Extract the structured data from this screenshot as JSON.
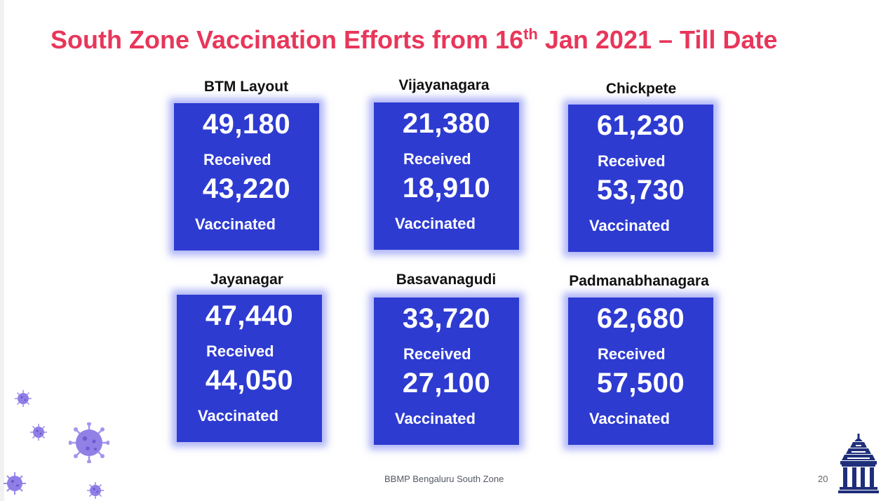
{
  "slide": {
    "title_prefix": "South Zone Vaccination Efforts from 16",
    "title_sup": "th",
    "title_suffix": " Jan 2021 – Till Date",
    "footer": "BBMP Bengaluru South Zone",
    "page_number": "20",
    "colors": {
      "title": "#e8365a",
      "card": "#2e3bd1",
      "card_glow": "#6e78f0",
      "virus": "#8f7ee6"
    }
  },
  "cards": [
    {
      "name": "BTM Layout",
      "received": "49,180",
      "received_label": "Received",
      "vaccinated": "43,220",
      "vaccinated_label": "Vaccinated"
    },
    {
      "name": "Vijayanagara",
      "received": "21,380",
      "received_label": "Received",
      "vaccinated": "18,910",
      "vaccinated_label": "Vaccinated"
    },
    {
      "name": "Chickpete",
      "received": "61,230",
      "received_label": "Received",
      "vaccinated": "53,730",
      "vaccinated_label": "Vaccinated"
    },
    {
      "name": "Jayanagar",
      "received": "47,440",
      "received_label": "Received",
      "vaccinated": "44,050",
      "vaccinated_label": "Vaccinated"
    },
    {
      "name": "Basavanagudi",
      "received": "33,720",
      "received_label": "Received",
      "vaccinated": "27,100",
      "vaccinated_label": "Vaccinated"
    },
    {
      "name": "Padmanabhanagara",
      "received": "62,680",
      "received_label": "Received",
      "vaccinated": "57,500",
      "vaccinated_label": "Vaccinated"
    }
  ],
  "icons": {
    "decoration": "virus-icon",
    "logo": "bbmp-temple-logo-icon"
  }
}
